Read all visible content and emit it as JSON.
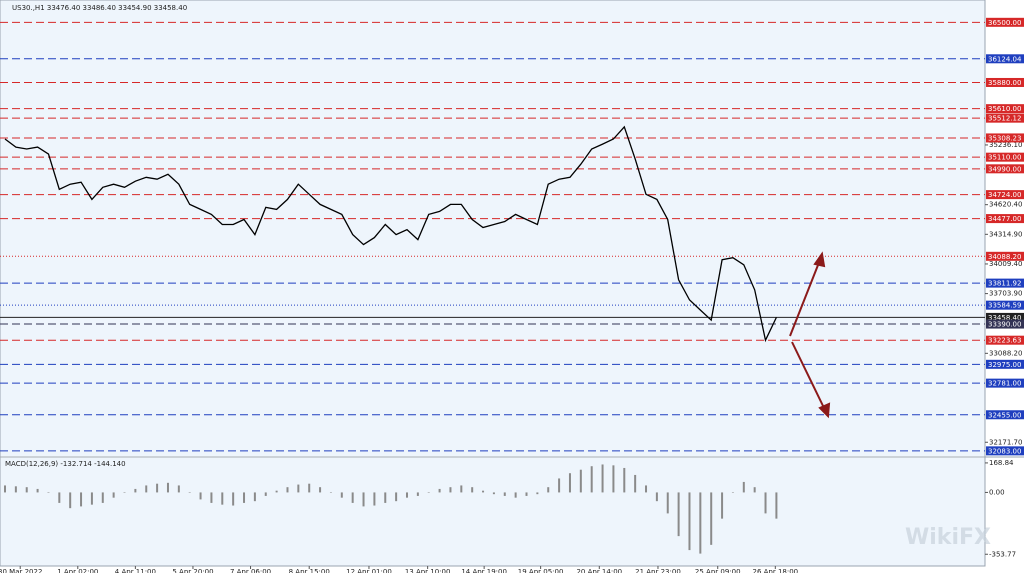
{
  "chart_data": {
    "type": "line",
    "title": "US30.,H1  33476.40 33486.40 33454.90 33458.40",
    "xlim": [
      -0.46,
      90.2
    ],
    "ylim": [
      32030,
      36730
    ],
    "color": "#000000",
    "values": [
      35297,
      35214,
      35194,
      35214,
      35142,
      34779,
      34831,
      34852,
      34675,
      34800,
      34831,
      34800,
      34862,
      34903,
      34883,
      34934,
      34831,
      34623,
      34572,
      34520,
      34416,
      34416,
      34468,
      34312,
      34592,
      34572,
      34675,
      34831,
      34727,
      34623,
      34572,
      34520,
      34312,
      34209,
      34281,
      34416,
      34312,
      34364,
      34260,
      34520,
      34551,
      34623,
      34623,
      34468,
      34385,
      34416,
      34447,
      34520,
      34468,
      34416,
      34831,
      34883,
      34903,
      35038,
      35194,
      35245,
      35297,
      35422,
      35090,
      34727,
      34675,
      34468,
      33846,
      33639,
      33535,
      33431,
      34053,
      34074,
      34001,
      33742,
      33224,
      33458.4
    ],
    "xticks": [
      {
        "value": 1.4,
        "label": "30 Mar 2022"
      },
      {
        "value": 6.7,
        "label": "1 Apr 02:00"
      },
      {
        "value": 12.0,
        "label": "4 Apr 11:00"
      },
      {
        "value": 17.3,
        "label": "5 Apr 20:00"
      },
      {
        "value": 22.6,
        "label": "7 Apr 06:00"
      },
      {
        "value": 28.0,
        "label": "8 Apr 15:00"
      },
      {
        "value": 33.5,
        "label": "12 Apr 01:00"
      },
      {
        "value": 38.9,
        "label": "13 Apr 10:00"
      },
      {
        "value": 44.1,
        "label": "14 Apr 19:00"
      },
      {
        "value": 49.3,
        "label": "19 Apr 05:00"
      },
      {
        "value": 54.7,
        "label": "20 Apr 14:00"
      },
      {
        "value": 60.1,
        "label": "21 Apr 23:00"
      },
      {
        "value": 65.6,
        "label": "25 Apr 09:00"
      },
      {
        "value": 70.9,
        "label": "26 Apr 18:00"
      }
    ],
    "yticks": [
      {
        "value": 35236.1,
        "label": "35236.10"
      },
      {
        "value": 34620.4,
        "label": "34620.40"
      },
      {
        "value": 34314.9,
        "label": "34314.90"
      },
      {
        "value": 34009.4,
        "label": "34009.40"
      },
      {
        "value": 33703.9,
        "label": "33703.90"
      },
      {
        "value": 33088.2,
        "label": "33088.20"
      },
      {
        "value": 32171.7,
        "label": "32171.70"
      }
    ],
    "levels": [
      {
        "value": 36500,
        "label": "36500.00",
        "color": "#d62828",
        "style": "dashed"
      },
      {
        "value": 36124.04,
        "label": "36124.04",
        "color": "#1f3fbf",
        "style": "dashed"
      },
      {
        "value": 35880,
        "label": "35880.00",
        "color": "#d62828",
        "style": "dashed"
      },
      {
        "value": 35610,
        "label": "35610.00",
        "color": "#d62828",
        "style": "dashed"
      },
      {
        "value": 35512.12,
        "label": "35512.12",
        "color": "#d62828",
        "style": "dashed"
      },
      {
        "value": 35308.23,
        "label": "35308.23",
        "color": "#d62828",
        "style": "dashed"
      },
      {
        "value": 35110,
        "label": "35110.00",
        "color": "#d62828",
        "style": "dashed"
      },
      {
        "value": 34990,
        "label": "34990.00",
        "color": "#d62828",
        "style": "dashed"
      },
      {
        "value": 34724,
        "label": "34724.00",
        "color": "#d62828",
        "style": "dashed"
      },
      {
        "value": 34477,
        "label": "34477.00",
        "color": "#d62828",
        "style": "dashed"
      },
      {
        "value": 34088.2,
        "label": "34088.20",
        "color": "#d62828",
        "style": "dotted"
      },
      {
        "value": 33811.92,
        "label": "33811.92",
        "color": "#1f3fbf",
        "style": "dashed"
      },
      {
        "value": 33584.59,
        "label": "33584.59",
        "color": "#1f3fbf",
        "style": "dotted"
      },
      {
        "value": 33458.4,
        "label": "33458.40",
        "color": "#222222",
        "style": "solid"
      },
      {
        "value": 33390,
        "label": "33390.00",
        "color": "#333355",
        "style": "dashed"
      },
      {
        "value": 33223.63,
        "label": "33223.63",
        "color": "#d62828",
        "style": "dashed"
      },
      {
        "value": 32975,
        "label": "32975.00",
        "color": "#1f3fbf",
        "style": "dashed"
      },
      {
        "value": 32781,
        "label": "32781.00",
        "color": "#1f3fbf",
        "style": "dashed"
      },
      {
        "value": 32455,
        "label": "32455.00",
        "color": "#1f3fbf",
        "style": "dashed"
      },
      {
        "value": 32083,
        "label": "32083.00",
        "color": "#1f3fbf",
        "style": "dashed"
      }
    ],
    "macd": {
      "title": "MACD(12,26,9) -132.714 -144.140",
      "color": "#8a8a8a",
      "ylim": [
        -421,
        197
      ],
      "yticks": [
        {
          "value": 168.84,
          "label": "168.84"
        },
        {
          "value": 0,
          "label": "0.00"
        },
        {
          "value": -353.77,
          "label": "-353.77"
        }
      ],
      "values": [
        40,
        35,
        30,
        20,
        0,
        -60,
        -90,
        -80,
        -70,
        -60,
        -30,
        0,
        20,
        40,
        50,
        55,
        40,
        0,
        -40,
        -60,
        -70,
        -75,
        -60,
        -50,
        -20,
        10,
        30,
        45,
        50,
        30,
        0,
        -30,
        -60,
        -80,
        -75,
        -60,
        -50,
        -30,
        -20,
        0,
        20,
        30,
        40,
        30,
        10,
        -10,
        -20,
        -30,
        -20,
        -10,
        30,
        80,
        110,
        130,
        150,
        160,
        155,
        140,
        100,
        40,
        -50,
        -120,
        -250,
        -330,
        -350,
        -300,
        -150,
        0,
        60,
        30,
        -120,
        -150
      ]
    },
    "watermark": "WikiFX"
  }
}
